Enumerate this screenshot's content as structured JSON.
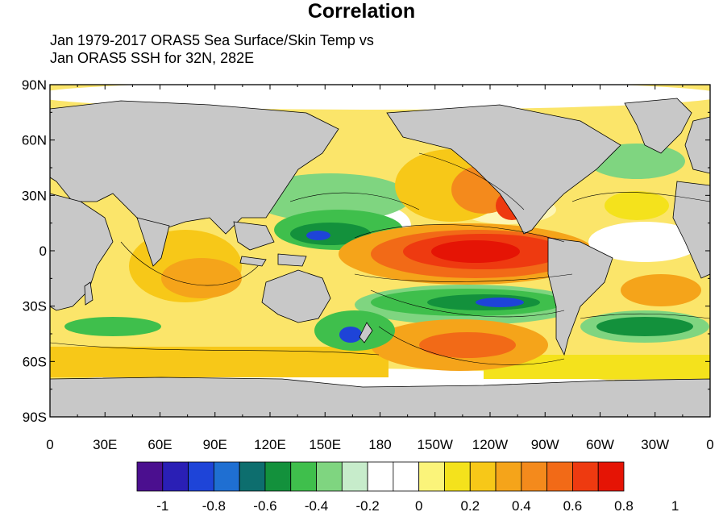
{
  "title": "Correlation",
  "subtitle": [
    "Jan 1979-2017 ORAS5 Sea Surface/Skin Temp vs",
    "Jan ORAS5 SSH for 32N, 282E"
  ],
  "axes": {
    "lat_ticks": [
      "90N",
      "60N",
      "30N",
      "0",
      "30S",
      "60S",
      "90S"
    ],
    "lon_ticks": [
      "0",
      "30E",
      "60E",
      "90E",
      "120E",
      "150E",
      "180",
      "150W",
      "120W",
      "90W",
      "60W",
      "30W",
      "0"
    ]
  },
  "colorbar": {
    "colors": [
      "#4b0f8f",
      "#2a1fb5",
      "#1e44d8",
      "#1f6fd2",
      "#0d6e6e",
      "#13913c",
      "#3fbf4c",
      "#7fd580",
      "#c7eccb",
      "#ffffff",
      "#ffffff",
      "#fbf47a",
      "#f4e21c",
      "#f7c818",
      "#f5a41a",
      "#f48a1c",
      "#f26a17",
      "#ee3a10",
      "#e51405"
    ],
    "labels": [
      "-1",
      "-0.8",
      "-0.6",
      "-0.4",
      "-0.2",
      "0",
      "0.2",
      "0.4",
      "0.6",
      "0.8",
      "1"
    ]
  },
  "colors": {
    "land": "#c8c8c8",
    "ocean_background": "#fbe56a"
  }
}
